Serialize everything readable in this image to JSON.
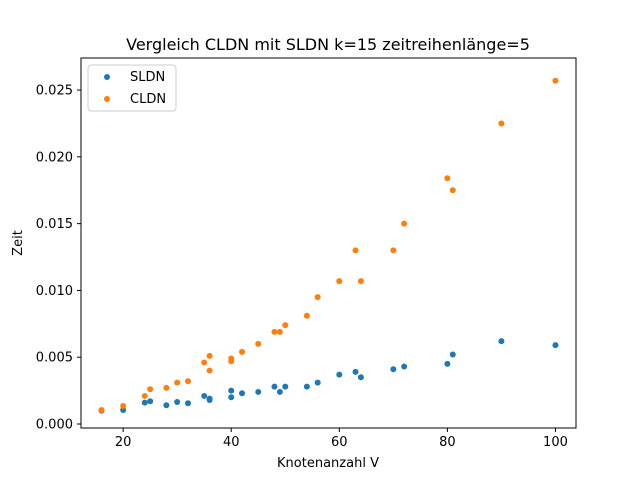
{
  "chart_data": {
    "type": "scatter",
    "title": "Vergleich CLDN mit SLDN k=15 zeitreihenlänge=5",
    "xlabel": "Knotenanzahl V",
    "ylabel": "Zeit",
    "xlim": [
      12.2,
      103.8
    ],
    "ylim": [
      -0.0003,
      0.0274
    ],
    "xticks": [
      20,
      40,
      60,
      80,
      100
    ],
    "xtick_labels": [
      "20",
      "40",
      "60",
      "80",
      "100"
    ],
    "yticks": [
      0.0,
      0.005,
      0.01,
      0.015,
      0.02,
      0.025
    ],
    "ytick_labels": [
      "0.000",
      "0.005",
      "0.010",
      "0.015",
      "0.020",
      "0.025"
    ],
    "grid": false,
    "legend_position": "top-left",
    "series": [
      {
        "name": "SLDN",
        "color": "#1f77b4",
        "x": [
          16,
          20,
          24,
          25,
          28,
          30,
          32,
          35,
          36,
          36,
          40,
          40,
          42,
          45,
          48,
          49,
          50,
          54,
          56,
          60,
          63,
          64,
          70,
          72,
          80,
          81,
          90,
          100
        ],
        "y": [
          0.001,
          0.00105,
          0.0016,
          0.0017,
          0.0014,
          0.00165,
          0.00155,
          0.0021,
          0.0019,
          0.0018,
          0.0025,
          0.002,
          0.0023,
          0.0024,
          0.0028,
          0.0024,
          0.0028,
          0.0028,
          0.0031,
          0.0037,
          0.0039,
          0.0035,
          0.0041,
          0.0043,
          0.0045,
          0.0052,
          0.0062,
          0.0059
        ]
      },
      {
        "name": "CLDN",
        "color": "#ff7f0e",
        "x": [
          16,
          20,
          24,
          25,
          28,
          30,
          32,
          35,
          36,
          36,
          40,
          40,
          42,
          45,
          48,
          49,
          50,
          54,
          56,
          60,
          63,
          64,
          70,
          72,
          80,
          81,
          90,
          100
        ],
        "y": [
          0.00105,
          0.00135,
          0.0021,
          0.0026,
          0.0027,
          0.0031,
          0.0032,
          0.0046,
          0.0051,
          0.004,
          0.0049,
          0.0047,
          0.0054,
          0.006,
          0.0069,
          0.0069,
          0.0074,
          0.0081,
          0.0095,
          0.0107,
          0.013,
          0.0107,
          0.013,
          0.015,
          0.0184,
          0.0175,
          0.0225,
          0.0257
        ]
      }
    ]
  }
}
